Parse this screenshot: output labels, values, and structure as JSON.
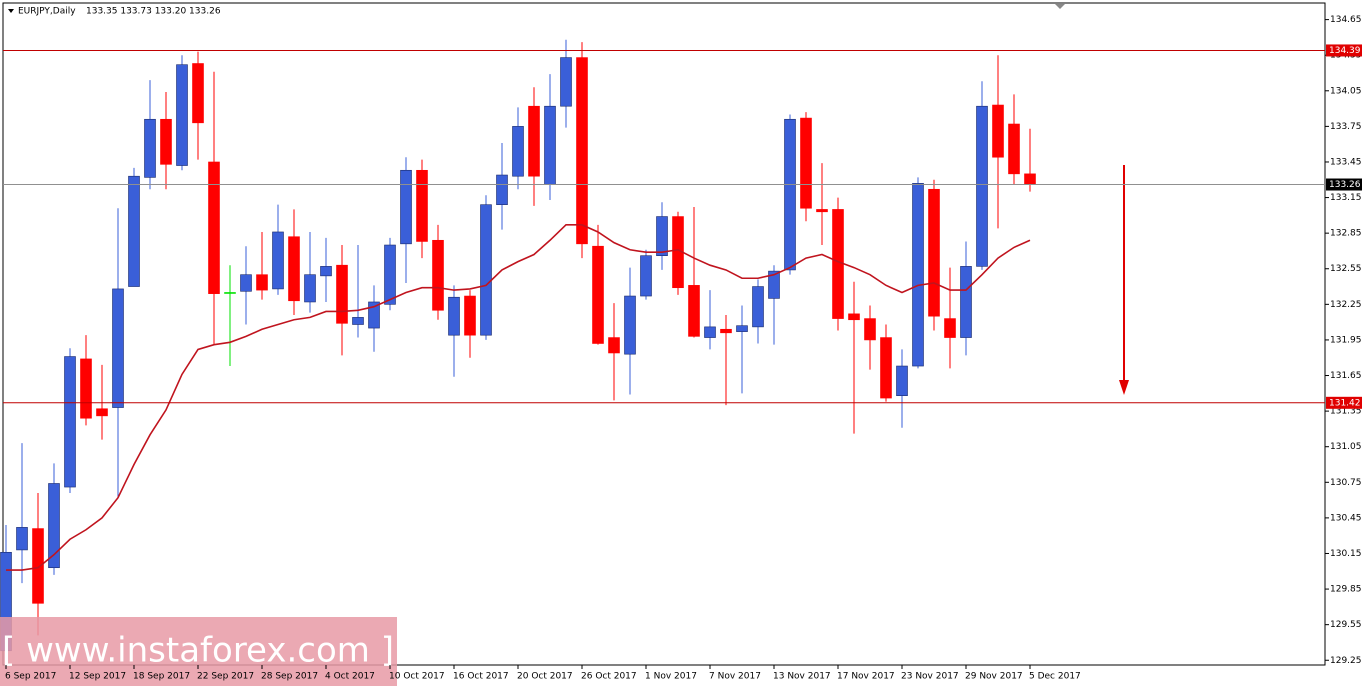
{
  "chart_data": {
    "type": "candlestick",
    "title": "EURJPY,Daily",
    "ohlc_text": "133.35 133.73 133.20 133.26",
    "watermark": "[ www.instaforex.com ]",
    "categories": [
      "6 Sep 2017",
      null,
      null,
      null,
      "12 Sep 2017",
      null,
      null,
      null,
      "18 Sep 2017",
      null,
      null,
      null,
      "22 Sep 2017",
      null,
      null,
      null,
      "28 Sep 2017",
      null,
      null,
      null,
      "4 Oct 2017",
      null,
      null,
      null,
      "10 Oct 2017",
      null,
      null,
      null,
      "16 Oct 2017",
      null,
      null,
      null,
      "20 Oct 2017",
      null,
      null,
      null,
      "26 Oct 2017",
      null,
      null,
      null,
      "1 Nov 2017",
      null,
      null,
      null,
      "7 Nov 2017",
      null,
      null,
      null,
      "13 Nov 2017",
      null,
      null,
      null,
      "17 Nov 2017",
      null,
      null,
      null,
      "23 Nov 2017",
      null,
      null,
      null,
      "29 Nov 2017",
      null,
      null,
      null,
      "5 Dec 2017"
    ],
    "open": [
      129.33,
      130.18,
      130.36,
      130.03,
      130.71,
      131.79,
      131.37,
      131.38,
      132.4,
      133.32,
      133.81,
      133.42,
      134.28,
      133.45,
      132.35,
      132.36,
      132.5,
      132.38,
      132.82,
      132.27,
      132.49,
      132.58,
      132.08,
      132.05,
      132.25,
      132.76,
      133.38,
      132.79,
      131.99,
      132.32,
      131.99,
      133.09,
      133.33,
      133.92,
      133.26,
      133.92,
      134.33,
      132.74,
      131.97,
      131.83,
      132.32,
      132.66,
      132.99,
      132.41,
      131.97,
      132.04,
      132.02,
      132.06,
      132.3,
      132.54,
      133.82,
      133.05,
      133.05,
      132.17,
      132.13,
      131.97,
      131.48,
      131.73,
      133.22,
      132.13,
      131.97,
      132.57,
      133.93,
      133.77,
      133.35
    ],
    "high": [
      130.39,
      131.08,
      130.66,
      130.91,
      131.88,
      131.99,
      131.74,
      133.06,
      133.4,
      134.14,
      134.04,
      134.35,
      134.38,
      134.21,
      132.58,
      132.74,
      132.86,
      133.09,
      133.05,
      132.86,
      132.81,
      132.75,
      132.75,
      132.41,
      132.81,
      133.49,
      133.47,
      132.92,
      132.41,
      132.37,
      133.17,
      133.61,
      133.91,
      134.08,
      134.19,
      134.48,
      134.46,
      132.92,
      132.26,
      132.56,
      132.71,
      133.11,
      133.03,
      133.07,
      132.37,
      132.16,
      132.24,
      132.46,
      132.58,
      133.85,
      133.87,
      133.44,
      133.15,
      132.44,
      132.24,
      132.08,
      131.87,
      133.32,
      133.3,
      132.56,
      132.78,
      134.13,
      134.35,
      134.02,
      133.73
    ],
    "low": [
      129.25,
      129.9,
      129.46,
      129.97,
      130.66,
      131.23,
      131.11,
      130.62,
      132.4,
      133.22,
      133.22,
      133.38,
      133.47,
      131.91,
      131.73,
      132.08,
      132.29,
      132.33,
      132.16,
      132.18,
      132.27,
      131.82,
      131.97,
      131.85,
      132.2,
      132.43,
      132.64,
      132.12,
      131.64,
      131.8,
      131.95,
      132.88,
      133.22,
      133.08,
      133.13,
      133.74,
      132.64,
      131.91,
      131.44,
      131.49,
      132.29,
      132.54,
      132.33,
      131.97,
      131.87,
      131.4,
      131.5,
      131.92,
      131.91,
      132.5,
      132.95,
      132.75,
      132.03,
      131.16,
      131.7,
      131.43,
      131.21,
      131.71,
      132.03,
      131.71,
      131.82,
      132.54,
      132.89,
      133.26,
      133.2
    ],
    "close": [
      130.16,
      130.37,
      129.73,
      130.74,
      131.81,
      131.29,
      131.31,
      132.38,
      133.33,
      133.81,
      133.43,
      134.27,
      133.78,
      132.34,
      132.35,
      132.5,
      132.37,
      132.86,
      132.28,
      132.5,
      132.57,
      132.09,
      132.14,
      132.27,
      132.75,
      133.38,
      132.78,
      132.2,
      132.31,
      131.99,
      133.09,
      133.34,
      133.75,
      133.33,
      133.92,
      134.33,
      132.76,
      131.92,
      131.84,
      132.32,
      132.66,
      132.99,
      132.39,
      131.98,
      132.06,
      132.01,
      132.07,
      132.4,
      132.53,
      133.81,
      133.06,
      133.03,
      132.13,
      132.12,
      131.95,
      131.46,
      131.73,
      133.27,
      132.15,
      131.97,
      132.57,
      133.92,
      133.49,
      133.35,
      133.26
    ],
    "bull_color": "#3a5fd8",
    "bear_color": "#ff0000",
    "doji_color": "#00e000",
    "ma": {
      "color": "#c0141e",
      "values": [
        130.01,
        130.01,
        130.03,
        130.14,
        130.27,
        130.35,
        130.45,
        130.62,
        130.9,
        131.15,
        131.36,
        131.66,
        131.87,
        131.91,
        131.93,
        131.98,
        132.04,
        132.08,
        132.12,
        132.14,
        132.19,
        132.19,
        132.2,
        132.23,
        132.29,
        132.35,
        132.39,
        132.39,
        132.37,
        132.38,
        132.41,
        132.54,
        132.61,
        132.67,
        132.79,
        132.92,
        132.92,
        132.86,
        132.77,
        132.71,
        132.69,
        132.69,
        132.71,
        132.64,
        132.58,
        132.54,
        132.47,
        132.47,
        132.5,
        132.56,
        132.64,
        132.67,
        132.61,
        132.56,
        132.5,
        132.41,
        132.35,
        132.41,
        132.43,
        132.37,
        132.37,
        132.5,
        132.64,
        132.73,
        132.79
      ]
    },
    "hlines": [
      {
        "value": 134.39,
        "color": "#c00000",
        "label_color": "#e00000"
      },
      {
        "value": 133.26,
        "color": "#909090",
        "label_color": "#000000"
      },
      {
        "value": 131.42,
        "color": "#c00000",
        "label_color": "#e00000"
      }
    ],
    "ylim": [
      129.21,
      134.79
    ],
    "yticks": [
      129.25,
      129.55,
      129.85,
      130.15,
      130.45,
      130.75,
      131.05,
      131.35,
      131.65,
      131.95,
      132.25,
      132.55,
      132.85,
      133.15,
      133.45,
      133.75,
      134.05,
      134.35,
      134.65
    ],
    "grid": false
  }
}
